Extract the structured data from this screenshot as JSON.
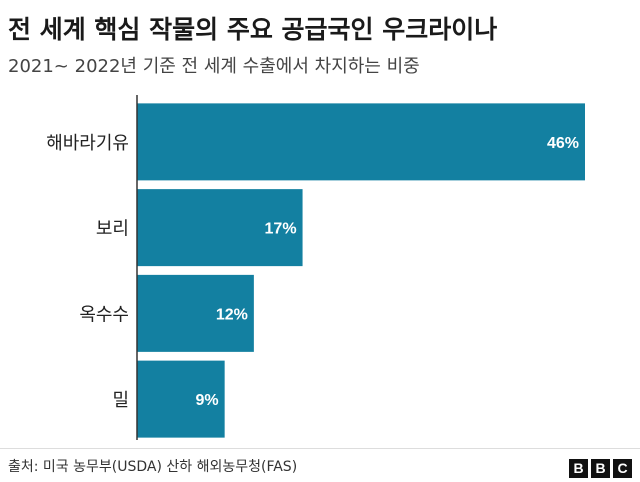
{
  "title": "전 세계 핵심 작물의 주요 공급국인 우크라이나",
  "subtitle": "2021~ 2022년 기준 전 세계 수출에서 차지하는 비중",
  "source": "출처: 미국 농무부(USDA) 산하 해외농무청(FAS)",
  "logo": [
    "B",
    "B",
    "C"
  ],
  "colors": {
    "bar": "#1380A1",
    "axis": "#333333",
    "label_inside": "#ffffff"
  },
  "chart_data": {
    "type": "bar",
    "orientation": "horizontal",
    "categories": [
      "해바라기유",
      "보리",
      "옥수수",
      "밀"
    ],
    "values": [
      46,
      17,
      12,
      9
    ],
    "value_labels": [
      "46%",
      "17%",
      "12%",
      "9%"
    ],
    "unit": "%",
    "xlim": [
      0,
      50
    ],
    "grid": false,
    "legend": "none"
  }
}
